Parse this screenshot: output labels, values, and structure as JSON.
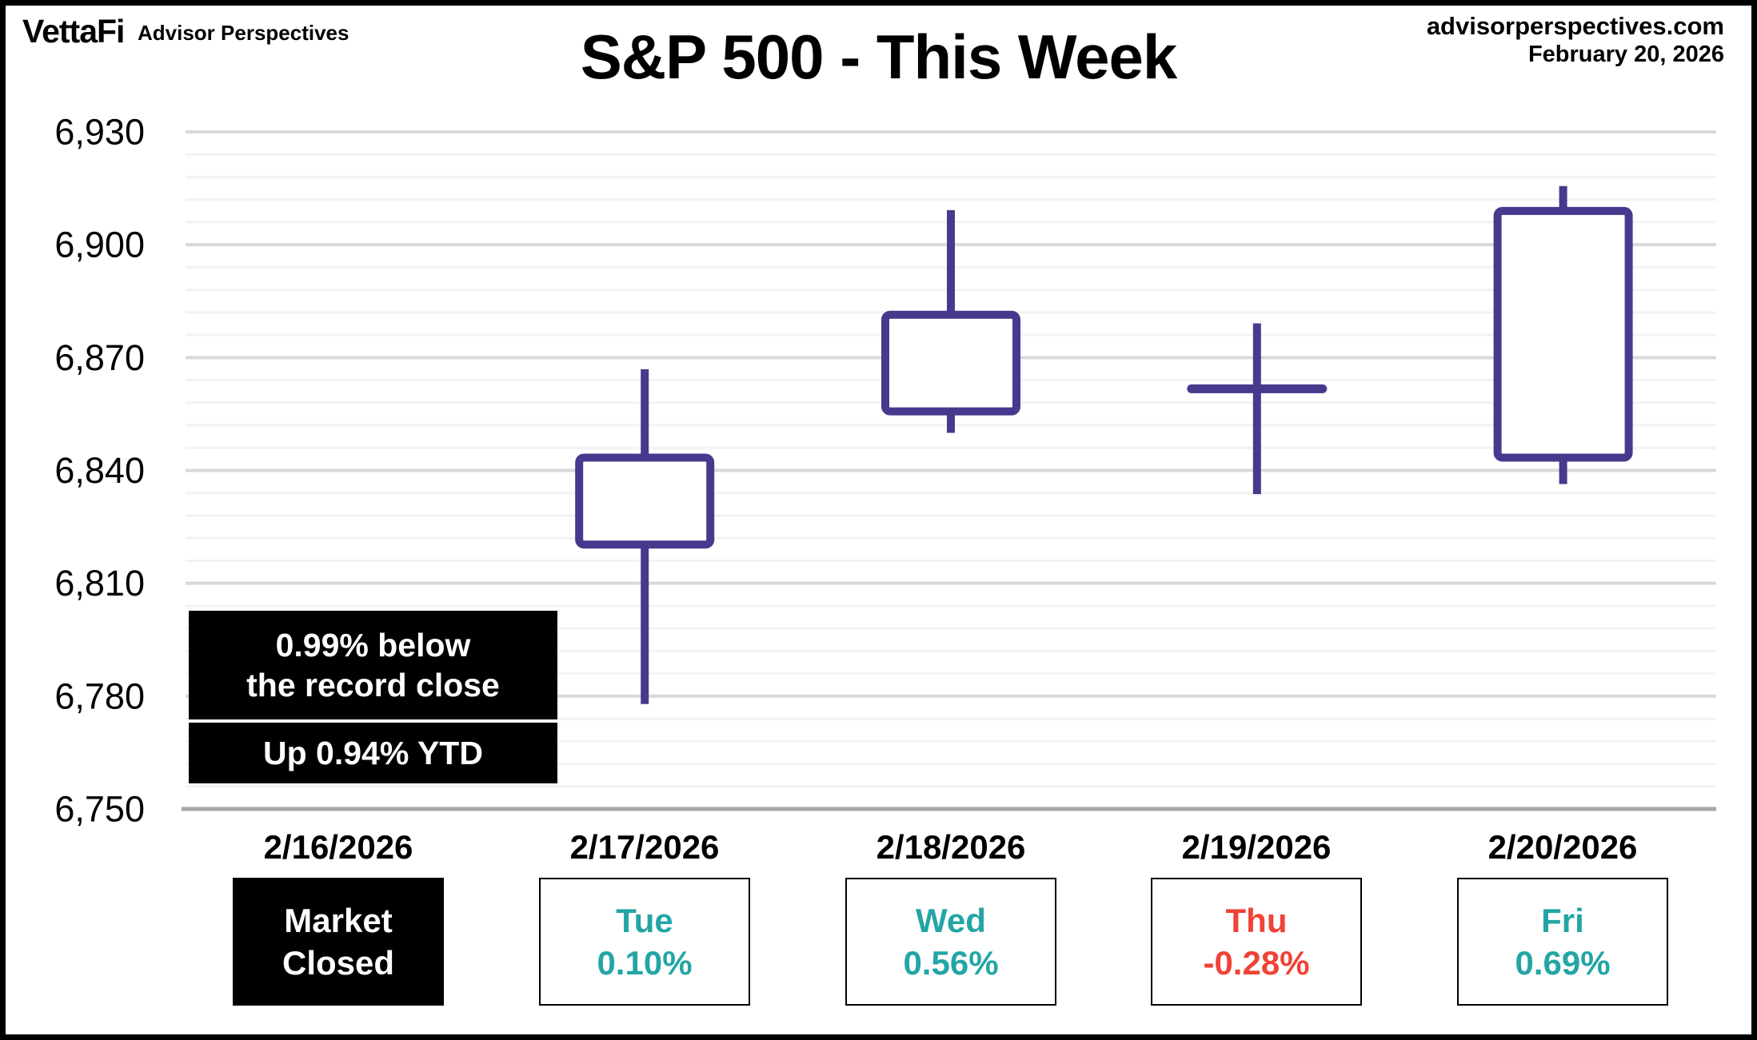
{
  "header": {
    "brand": "VettaFi",
    "brand_suffix": "Advisor Perspectives",
    "title": "S&P 500 - This Week",
    "site": "advisorperspectives.com",
    "date": "February 20, 2026"
  },
  "annotations": {
    "record_line1": "0.99% below",
    "record_line2": "the record close",
    "ytd": "Up 0.94% YTD"
  },
  "chart_data": {
    "type": "candlestick",
    "title": "S&P 500 - This Week",
    "grid": true,
    "legend": false,
    "y_axis": {
      "min": 6750,
      "max": 6930,
      "major_unit": 30,
      "minor_unit": 6,
      "tick_labels": [
        {
          "value": 6930,
          "label": "6,930"
        },
        {
          "value": 6900,
          "label": "6,900"
        },
        {
          "value": 6870,
          "label": "6,870"
        },
        {
          "value": 6840,
          "label": "6,840"
        },
        {
          "value": 6810,
          "label": "6,810"
        },
        {
          "value": 6780,
          "label": "6,780"
        },
        {
          "value": 6750,
          "label": "6,750"
        }
      ]
    },
    "x_categories": [
      "2/16/2026",
      "2/17/2026",
      "2/18/2026",
      "2/19/2026",
      "2/20/2026"
    ],
    "candles": [
      {
        "date": "2/17/2026",
        "day": "Tue",
        "open": 6820.3,
        "high": 6866.9,
        "low": 6777.9,
        "close": 6843.4,
        "change_pct": "0.10%"
      },
      {
        "date": "2/18/2026",
        "day": "Wed",
        "open": 6855.7,
        "high": 6909.2,
        "low": 6850.0,
        "close": 6881.4,
        "change_pct": "0.56%"
      },
      {
        "date": "2/19/2026",
        "day": "Thu",
        "open": 6861.7,
        "high": 6879.1,
        "low": 6833.7,
        "close": 6861.7,
        "change_pct": "-0.28%"
      },
      {
        "date": "2/20/2026",
        "day": "Fri",
        "open": 6843.4,
        "high": 6915.6,
        "low": 6836.4,
        "close": 6909.0,
        "change_pct": "0.69%"
      }
    ]
  },
  "columns": [
    {
      "date": "2/16/2026",
      "line1": "Market",
      "line2": "Closed",
      "style": "closed"
    },
    {
      "date": "2/17/2026",
      "line1": "Tue",
      "line2": "0.10%",
      "style": "up"
    },
    {
      "date": "2/18/2026",
      "line1": "Wed",
      "line2": "0.56%",
      "style": "up"
    },
    {
      "date": "2/19/2026",
      "line1": "Thu",
      "line2": "-0.28%",
      "style": "down"
    },
    {
      "date": "2/20/2026",
      "line1": "Fri",
      "line2": "0.69%",
      "style": "up"
    }
  ],
  "colors": {
    "candle": "#453A8D",
    "up_text": "#24A5A5",
    "down_text": "#F04337",
    "grid_major": "#D9D9D9",
    "grid_minor": "#F2F2F2",
    "axis_line": "#A6A6A6",
    "annotation_bg": "#000000",
    "annotation_text": "#FFFFFF"
  }
}
